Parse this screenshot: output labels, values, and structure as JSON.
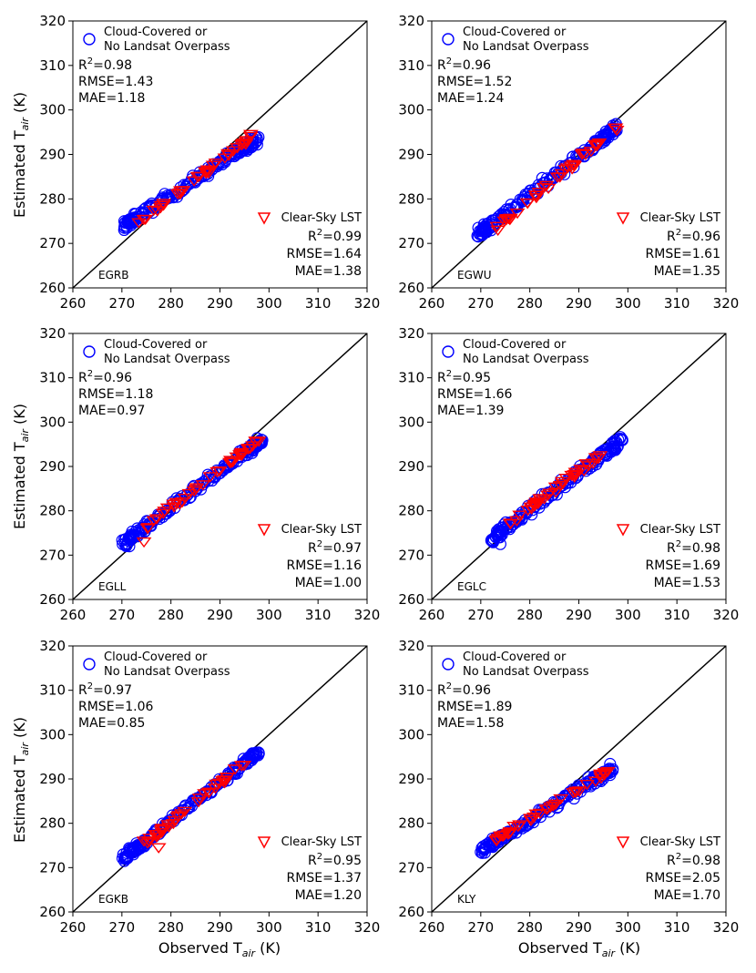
{
  "figure": {
    "x_axis_label": "Observed T",
    "x_axis_label_sub": "air",
    "x_axis_label_unit": " (K)",
    "y_axis_label": "Estimated T",
    "y_axis_label_sub": "air",
    "y_axis_label_unit": " (K)"
  },
  "legend": {
    "cloud_label_line1": "Cloud-Covered or",
    "cloud_label_line2": "No Landsat Overpass",
    "clear_label": "Clear-Sky LST"
  },
  "colors": {
    "cloud": "#0000ff",
    "clear": "#ff0000",
    "line": "#000000"
  },
  "chart_data": [
    {
      "type": "scatter",
      "station": "EGRB",
      "xlim": [
        260,
        320
      ],
      "ylim": [
        260,
        320
      ],
      "xticks": [
        260,
        270,
        280,
        290,
        300,
        310,
        320
      ],
      "yticks": [
        260,
        270,
        280,
        290,
        300,
        310,
        320
      ],
      "reference_line": "1:1",
      "cloud_stats": {
        "r2": "0.98",
        "rmse": "1.43",
        "mae": "1.18"
      },
      "clear_stats": {
        "r2": "0.99",
        "rmse": "1.64",
        "mae": "1.38"
      },
      "cloud_fit": {
        "x_range": [
          270,
          298
        ],
        "slope": 0.72,
        "intercept": 79.2,
        "spread": 1.3
      },
      "clear_fit": {
        "x_range": [
          273,
          297
        ],
        "slope": 0.85,
        "intercept": 42.0,
        "spread": 0.9
      },
      "cloud_outliers": [
        [
          270.5,
          275.0
        ],
        [
          271.0,
          273.5
        ]
      ],
      "clear_outliers": []
    },
    {
      "type": "scatter",
      "station": "EGWU",
      "xlim": [
        260,
        320
      ],
      "ylim": [
        260,
        320
      ],
      "xticks": [
        260,
        270,
        280,
        290,
        300,
        310,
        320
      ],
      "yticks": [
        260,
        270,
        280,
        290,
        300,
        310,
        320
      ],
      "reference_line": "1:1",
      "cloud_stats": {
        "r2": "0.96",
        "rmse": "1.52",
        "mae": "1.24"
      },
      "clear_stats": {
        "r2": "0.96",
        "rmse": "1.61",
        "mae": "1.35"
      },
      "cloud_fit": {
        "x_range": [
          269,
          298
        ],
        "slope": 0.85,
        "intercept": 43.0,
        "spread": 1.4
      },
      "clear_fit": {
        "x_range": [
          273,
          298
        ],
        "slope": 0.92,
        "intercept": 22.0,
        "spread": 1.0
      },
      "cloud_outliers": [
        [
          269.5,
          273.5
        ],
        [
          270.0,
          272.0
        ]
      ],
      "clear_outliers": [
        [
          273.5,
          273.0
        ]
      ]
    },
    {
      "type": "scatter",
      "station": "EGLL",
      "xlim": [
        260,
        320
      ],
      "ylim": [
        260,
        320
      ],
      "xticks": [
        260,
        270,
        280,
        290,
        300,
        310,
        320
      ],
      "yticks": [
        260,
        270,
        280,
        290,
        300,
        310,
        320
      ],
      "reference_line": "1:1",
      "cloud_stats": {
        "r2": "0.96",
        "rmse": "1.18",
        "mae": "0.97"
      },
      "clear_stats": {
        "r2": "0.97",
        "rmse": "1.16",
        "mae": "1.00"
      },
      "cloud_fit": {
        "x_range": [
          270,
          299
        ],
        "slope": 0.82,
        "intercept": 51.0,
        "spread": 1.3
      },
      "clear_fit": {
        "x_range": [
          274,
          298
        ],
        "slope": 0.86,
        "intercept": 39.8,
        "spread": 0.9
      },
      "cloud_outliers": [
        [
          270.5,
          273.5
        ],
        [
          271.5,
          272.0
        ]
      ],
      "clear_outliers": [
        [
          274.5,
          273.0
        ]
      ]
    },
    {
      "type": "scatter",
      "station": "EGLC",
      "xlim": [
        260,
        320
      ],
      "ylim": [
        260,
        320
      ],
      "xticks": [
        260,
        270,
        280,
        290,
        300,
        310,
        320
      ],
      "yticks": [
        260,
        270,
        280,
        290,
        300,
        310,
        320
      ],
      "reference_line": "1:1",
      "cloud_stats": {
        "r2": "0.95",
        "rmse": "1.66",
        "mae": "1.39"
      },
      "clear_stats": {
        "r2": "0.98",
        "rmse": "1.69",
        "mae": "1.53"
      },
      "cloud_fit": {
        "x_range": [
          272,
          299
        ],
        "slope": 0.84,
        "intercept": 45.0,
        "spread": 1.4
      },
      "clear_fit": {
        "x_range": [
          276,
          295
        ],
        "slope": 0.82,
        "intercept": 51.0,
        "spread": 0.9
      },
      "cloud_outliers": [
        [
          272.5,
          273.0
        ],
        [
          274.0,
          272.5
        ]
      ],
      "clear_outliers": []
    },
    {
      "type": "scatter",
      "station": "EGKB",
      "xlim": [
        260,
        320
      ],
      "ylim": [
        260,
        320
      ],
      "xticks": [
        260,
        270,
        280,
        290,
        300,
        310,
        320
      ],
      "yticks": [
        260,
        270,
        280,
        290,
        300,
        310,
        320
      ],
      "reference_line": "1:1",
      "cloud_stats": {
        "r2": "0.97",
        "rmse": "1.06",
        "mae": "0.85"
      },
      "clear_stats": {
        "r2": "0.95",
        "rmse": "1.37",
        "mae": "1.20"
      },
      "cloud_fit": {
        "x_range": [
          270,
          298
        ],
        "slope": 0.87,
        "intercept": 37.0,
        "spread": 1.3
      },
      "clear_fit": {
        "x_range": [
          275,
          296
        ],
        "slope": 0.9,
        "intercept": 28.0,
        "spread": 0.9
      },
      "cloud_outliers": [
        [
          270.5,
          271.5
        ],
        [
          271.5,
          273.5
        ]
      ],
      "clear_outliers": [
        [
          277.5,
          274.5
        ],
        [
          274.5,
          276.0
        ]
      ]
    },
    {
      "type": "scatter",
      "station": "KLY",
      "xlim": [
        260,
        320
      ],
      "ylim": [
        260,
        320
      ],
      "xticks": [
        260,
        270,
        280,
        290,
        300,
        310,
        320
      ],
      "yticks": [
        260,
        270,
        280,
        290,
        300,
        310,
        320
      ],
      "reference_line": "1:1",
      "cloud_stats": {
        "r2": "0.96",
        "rmse": "1.89",
        "mae": "1.58"
      },
      "clear_stats": {
        "r2": "0.98",
        "rmse": "2.05",
        "mae": "1.70"
      },
      "cloud_fit": {
        "x_range": [
          270,
          297
        ],
        "slope": 0.69,
        "intercept": 87.5,
        "spread": 1.2
      },
      "clear_fit": {
        "x_range": [
          273,
          296
        ],
        "slope": 0.68,
        "intercept": 90.4,
        "spread": 0.8
      },
      "cloud_outliers": [
        [
          270.0,
          273.5
        ]
      ],
      "clear_outliers": []
    }
  ]
}
